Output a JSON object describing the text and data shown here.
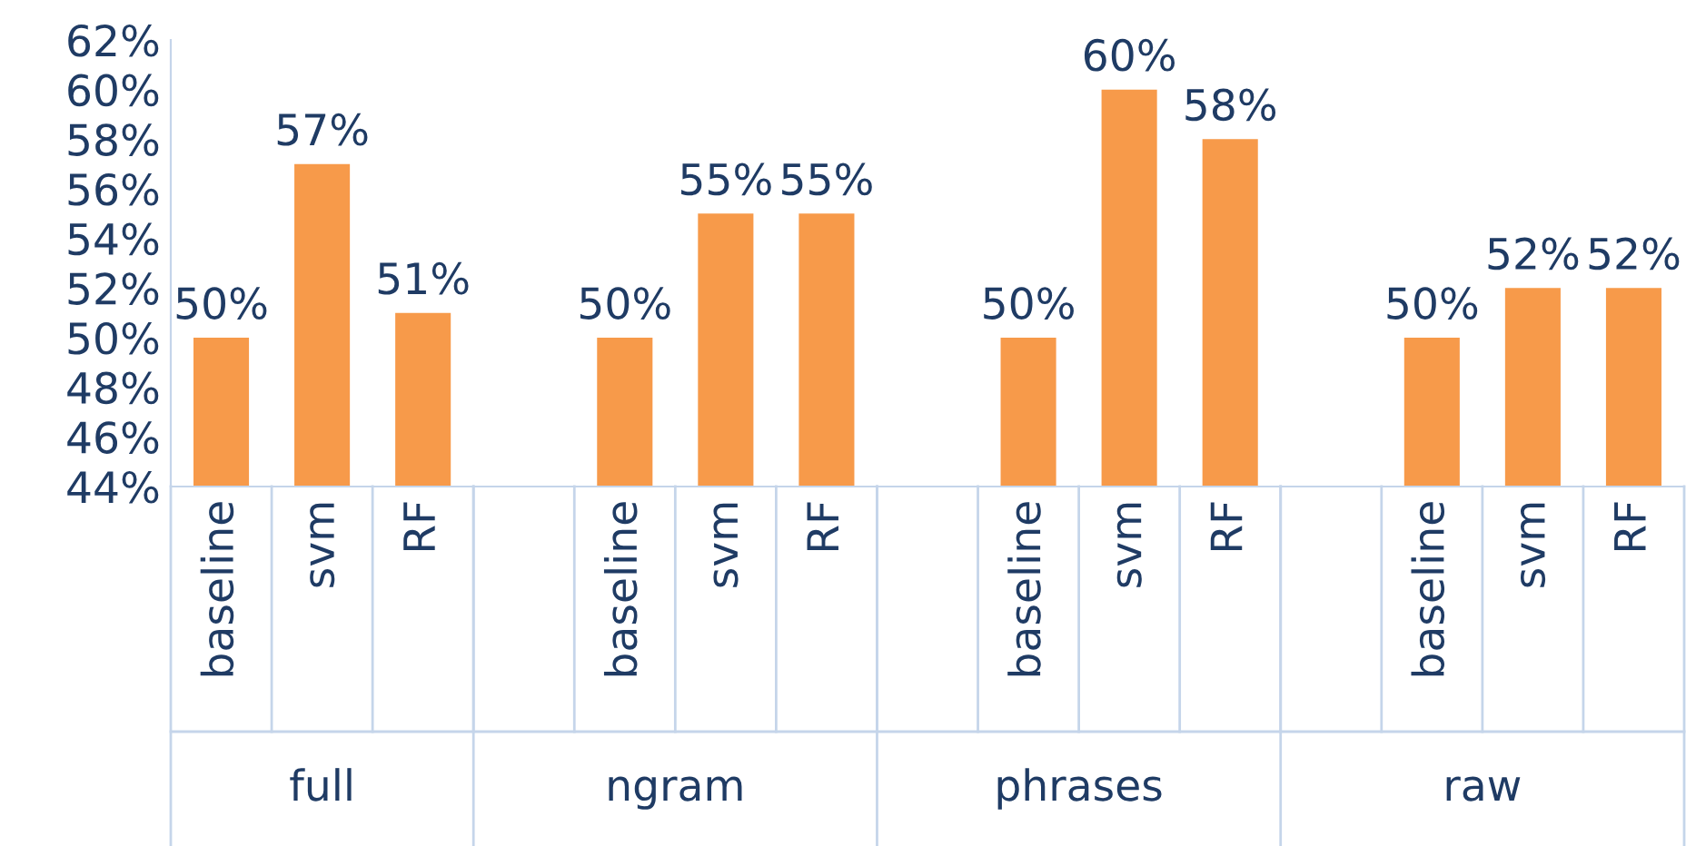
{
  "chart_data": {
    "type": "bar",
    "categories": [
      "baseline",
      "svm",
      "RF",
      null,
      "baseline",
      "svm",
      "RF",
      null,
      "baseline",
      "svm",
      "RF",
      null,
      "baseline",
      "svm",
      "RF"
    ],
    "values": [
      50,
      57,
      51,
      null,
      50,
      55,
      55,
      null,
      50,
      60,
      58,
      null,
      50,
      52,
      52
    ],
    "value_labels": [
      "50%",
      "57%",
      "51%",
      null,
      "50%",
      "55%",
      "55%",
      null,
      "50%",
      "60%",
      "58%",
      null,
      "50%",
      "52%",
      "52%"
    ],
    "color": "#f79a4a",
    "ylim": [
      44,
      62
    ],
    "yticks": [
      {
        "value": 44,
        "label": "44%"
      },
      {
        "value": 46,
        "label": "46%"
      },
      {
        "value": 48,
        "label": "48%"
      },
      {
        "value": 50,
        "label": "50%"
      },
      {
        "value": 52,
        "label": "52%"
      },
      {
        "value": 54,
        "label": "54%"
      },
      {
        "value": 56,
        "label": "56%"
      },
      {
        "value": 58,
        "label": "58%"
      },
      {
        "value": 60,
        "label": "60%"
      },
      {
        "value": 62,
        "label": "62%"
      }
    ],
    "annotations": [
      "full",
      "ngram",
      "phrases",
      "raw"
    ],
    "grid": false
  }
}
